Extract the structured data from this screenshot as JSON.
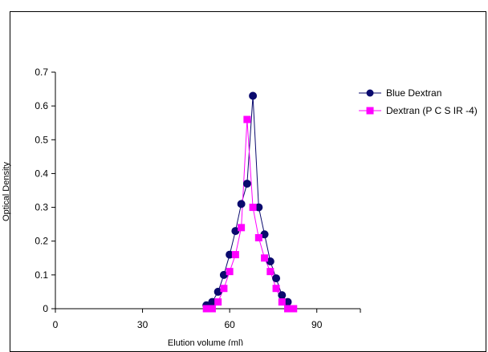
{
  "chart_data": {
    "type": "line",
    "title": "",
    "xlabel": "Elution volume (ml)",
    "ylabel": "Optical Density",
    "xlim": [
      0,
      105
    ],
    "ylim": [
      0,
      0.7
    ],
    "xticks": [
      0,
      30,
      60,
      90
    ],
    "xtick_labels": [
      "0",
      "30",
      "60",
      "90"
    ],
    "yticks": [
      0,
      0.1,
      0.2,
      0.3,
      0.4,
      0.5,
      0.6,
      0.7
    ],
    "ytick_labels": [
      "0",
      "0.1",
      "0.2",
      "0.3",
      "0.4",
      "0.5",
      "0.6",
      "0.7"
    ],
    "grid": false,
    "legend_position": "top-right",
    "series": [
      {
        "name": "Blue Dextran",
        "color": "#0a0a6e",
        "marker": "circle",
        "x": [
          52,
          54,
          56,
          58,
          60,
          62,
          64,
          66,
          68,
          70,
          72,
          74,
          76,
          78,
          80
        ],
        "y": [
          0.01,
          0.02,
          0.05,
          0.1,
          0.16,
          0.23,
          0.31,
          0.37,
          0.63,
          0.3,
          0.22,
          0.14,
          0.09,
          0.04,
          0.02
        ]
      },
      {
        "name": "Dextran (P C S IR -4)",
        "color": "#ff00ff",
        "marker": "square",
        "x": [
          52,
          54,
          56,
          58,
          60,
          62,
          64,
          66,
          68,
          70,
          72,
          74,
          76,
          78,
          80,
          82
        ],
        "y": [
          0.0,
          0.0,
          0.02,
          0.06,
          0.11,
          0.16,
          0.24,
          0.56,
          0.3,
          0.21,
          0.15,
          0.11,
          0.06,
          0.02,
          0.0,
          0.0
        ]
      }
    ]
  }
}
